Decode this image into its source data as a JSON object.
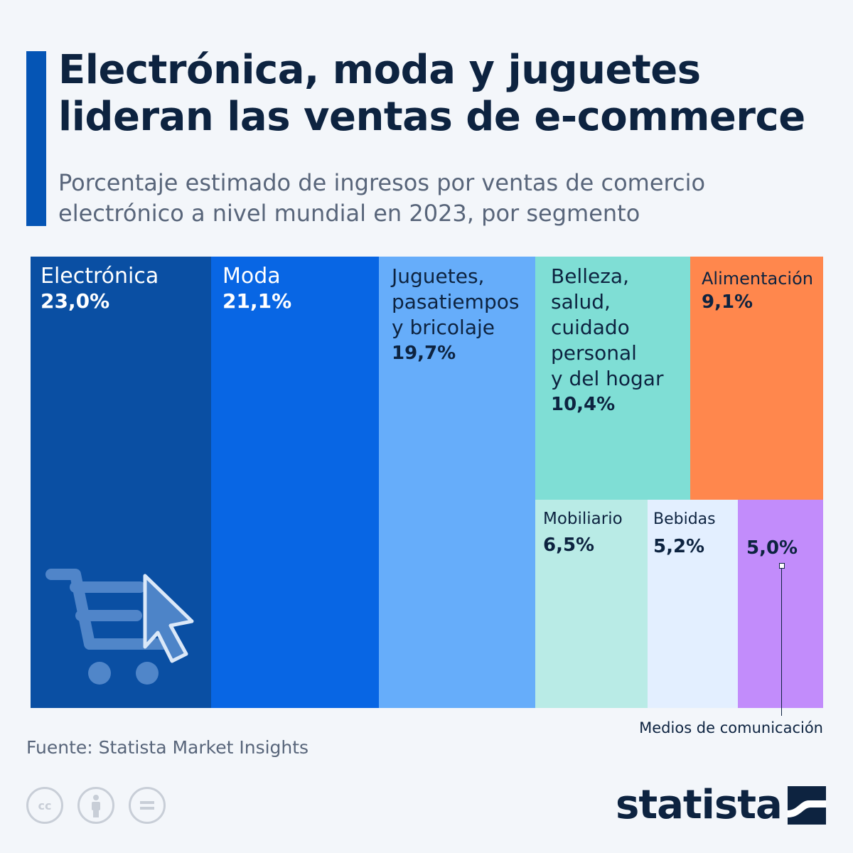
{
  "header": {
    "title_lines": [
      "Electrónica, moda y juguetes",
      "lideran las ventas de e-commerce"
    ],
    "subtitle_lines": [
      "Porcentaje estimado de ingresos por ventas de comercio",
      "electrónico a nivel mundial en 2023, por segmento"
    ]
  },
  "chart_data": {
    "type": "treemap",
    "unit": "%",
    "segments": [
      {
        "label": "Electrónica",
        "value": 23.0,
        "value_label": "23,0%",
        "color": "#0a4fa3"
      },
      {
        "label": "Moda",
        "value": 21.1,
        "value_label": "21,1%",
        "color": "#0866e4"
      },
      {
        "label": "Juguetes,\npasatiempos\ny bricolaje",
        "value": 19.7,
        "value_label": "19,7%",
        "color": "#66adfa"
      },
      {
        "label": "Belleza,\nsalud,\ncuidado\npersonal\ny del hogar",
        "value": 10.4,
        "value_label": "10,4%",
        "color": "#7fded5"
      },
      {
        "label": "Alimentación",
        "value": 9.1,
        "value_label": "9,1%",
        "color": "#ff874d"
      },
      {
        "label": "Mobiliario",
        "value": 6.5,
        "value_label": "6,5%",
        "color": "#b9ebe6"
      },
      {
        "label": "Bebidas",
        "value": 5.2,
        "value_label": "5,2%",
        "color": "#e3efff"
      },
      {
        "label": "Medios de comunicación",
        "value": 5.0,
        "value_label": "5,0%",
        "color": "#c28cfb"
      }
    ]
  },
  "footer": {
    "source": "Fuente: Statista Market Insights",
    "brand": "statista",
    "license_icons": [
      "cc-icon",
      "attribution-icon",
      "no-derivatives-icon"
    ]
  }
}
